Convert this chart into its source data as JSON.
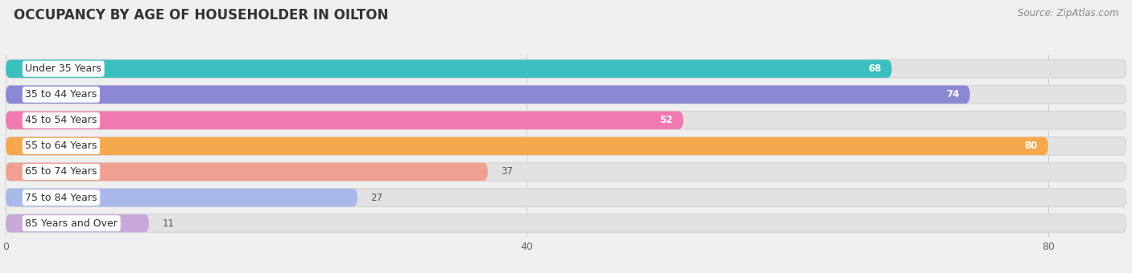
{
  "title": "OCCUPANCY BY AGE OF HOUSEHOLDER IN OILTON",
  "source": "Source: ZipAtlas.com",
  "categories": [
    "Under 35 Years",
    "35 to 44 Years",
    "45 to 54 Years",
    "55 to 64 Years",
    "65 to 74 Years",
    "75 to 84 Years",
    "85 Years and Over"
  ],
  "values": [
    68,
    74,
    52,
    80,
    37,
    27,
    11
  ],
  "bar_colors": [
    "#3bbfbf",
    "#8b88d4",
    "#f07ab0",
    "#f5a84e",
    "#f0a090",
    "#a8b8e8",
    "#c8a8d8"
  ],
  "xlim_max": 86,
  "xticks": [
    0,
    40,
    80
  ],
  "background_color": "#efefef",
  "bar_bg_color": "#e2e2e2",
  "label_bg_color": "#ffffff",
  "title_fontsize": 12,
  "source_fontsize": 8.5,
  "label_fontsize": 9,
  "value_fontsize": 8.5,
  "tick_fontsize": 9,
  "inside_threshold": 50
}
